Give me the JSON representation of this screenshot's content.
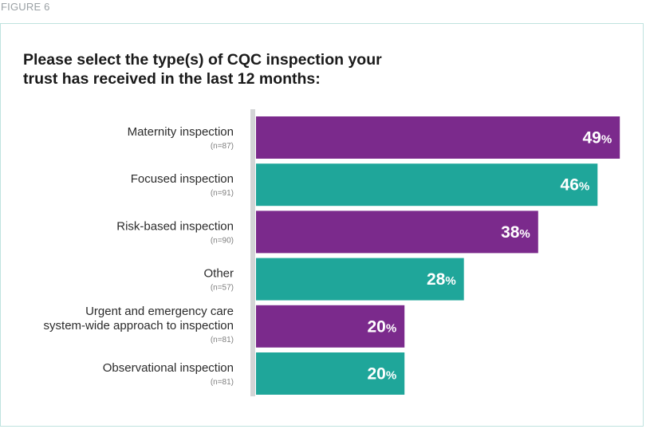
{
  "figure_label": "FIGURE 6",
  "chart_data": {
    "type": "bar",
    "orientation": "horizontal",
    "title": "Please select the type(s) of CQC inspection your trust has received in the last 12 months:",
    "title_lines": [
      "Please select the type(s) of CQC inspection your",
      "trust has received in the last 12 months:"
    ],
    "categories": [
      {
        "lines": [
          "Maternity inspection"
        ],
        "n": "(n=87)"
      },
      {
        "lines": [
          "Focused inspection"
        ],
        "n": "(n=91)"
      },
      {
        "lines": [
          "Risk-based inspection"
        ],
        "n": "(n=90)"
      },
      {
        "lines": [
          "Other"
        ],
        "n": "(n=57)"
      },
      {
        "lines": [
          "Urgent and emergency care",
          "system-wide approach to inspection"
        ],
        "n": "(n=81)"
      },
      {
        "lines": [
          "Observational inspection"
        ],
        "n": "(n=81)"
      }
    ],
    "values": [
      49,
      46,
      38,
      28,
      20,
      20
    ],
    "unit": "%",
    "xlim": [
      0,
      50
    ],
    "colors": [
      "#7b2a8c",
      "#1fa69a",
      "#7b2a8c",
      "#1fa69a",
      "#7b2a8c",
      "#1fa69a"
    ],
    "axis_color": "#d3d5d6",
    "grid": false,
    "legend": "none"
  }
}
